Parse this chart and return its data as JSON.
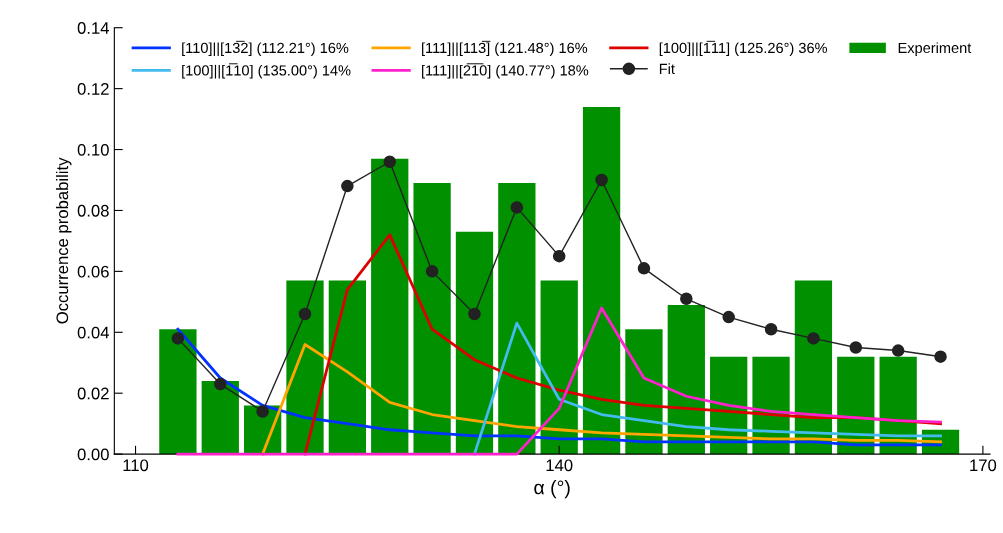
{
  "chart_data": {
    "type": "bar",
    "xlabel": "α (°)",
    "ylabel": "Occurrence probability",
    "xlim": [
      108.5,
      170.5
    ],
    "xticks": [
      110,
      140,
      170
    ],
    "ylim": [
      0,
      0.14
    ],
    "yticks": [
      {
        "value": 0,
        "label": "0.00"
      },
      {
        "value": 0.02,
        "label": "0.02"
      },
      {
        "value": 0.04,
        "label": "0.04"
      },
      {
        "value": 0.06,
        "label": "0.06"
      },
      {
        "value": 0.08,
        "label": "0.08"
      },
      {
        "value": 0.1,
        "label": "0.10"
      },
      {
        "value": 0.12,
        "label": "0.12"
      },
      {
        "value": 0.14,
        "label": "0.14"
      }
    ],
    "grid": false,
    "legend": "top",
    "series": [
      {
        "name": "[110]||[13̅2] (112.21°) 16%",
        "type": "line",
        "color": "#0033ff",
        "x": [
          113,
          116,
          119,
          122,
          125,
          128,
          131,
          134,
          137,
          140,
          143,
          146,
          149,
          152,
          155,
          158,
          161,
          164,
          167
        ],
        "values": [
          0.041,
          0.025,
          0.016,
          0.012,
          0.01,
          0.008,
          0.007,
          0.006,
          0.006,
          0.005,
          0.005,
          0.004,
          0.004,
          0.004,
          0.004,
          0.004,
          0.003,
          0.003,
          0.003
        ]
      },
      {
        "name": "[111]||[113̅] (121.48°) 16%",
        "type": "line",
        "color": "#ffa500",
        "x": [
          119,
          122,
          125,
          128,
          131,
          134,
          137,
          140,
          143,
          146,
          149,
          152,
          155,
          158,
          161,
          164,
          167
        ],
        "values": [
          0,
          0.036,
          0.027,
          0.017,
          0.013,
          0.011,
          0.009,
          0.008,
          0.007,
          0.0065,
          0.006,
          0.0055,
          0.005,
          0.005,
          0.0045,
          0.0045,
          0.004
        ]
      },
      {
        "name": "[100]||[1̅11] (125.26°) 36%",
        "type": "line",
        "color": "#dd0000",
        "x": [
          122,
          125,
          128,
          131,
          134,
          137,
          140,
          143,
          146,
          149,
          152,
          155,
          158,
          161,
          164,
          167
        ],
        "values": [
          0,
          0.054,
          0.072,
          0.041,
          0.031,
          0.025,
          0.021,
          0.018,
          0.016,
          0.015,
          0.014,
          0.013,
          0.012,
          0.012,
          0.011,
          0.01
        ]
      },
      {
        "name": "[100]||[1̅10] (135.00°) 14%",
        "type": "line",
        "color": "#44bbee",
        "x": [
          134,
          137,
          140,
          143,
          146,
          149,
          152,
          155,
          158,
          161,
          164,
          167
        ],
        "values": [
          0,
          0.043,
          0.018,
          0.013,
          0.011,
          0.009,
          0.008,
          0.0075,
          0.007,
          0.0065,
          0.006,
          0.006
        ]
      },
      {
        "name": "[111]||[2̅1̅0] (140.77°) 18%",
        "type": "line",
        "color": "#ff22cc",
        "x": [
          113,
          116,
          119,
          122,
          125,
          128,
          131,
          134,
          137,
          140,
          143,
          146,
          149,
          152,
          155,
          158,
          161,
          164,
          167
        ],
        "values": [
          0,
          0,
          0,
          0,
          0,
          0,
          0,
          0,
          0,
          0.015,
          0.048,
          0.025,
          0.019,
          0.016,
          0.014,
          0.013,
          0.012,
          0.011,
          0.0105
        ]
      },
      {
        "name": "Fit",
        "type": "line",
        "marker": "circle",
        "color": "#222222",
        "x": [
          113,
          116,
          119,
          122,
          125,
          128,
          131,
          134,
          137,
          140,
          143,
          146,
          149,
          152,
          155,
          158,
          161,
          164,
          167
        ],
        "values": [
          0.038,
          0.023,
          0.014,
          0.046,
          0.088,
          0.096,
          0.06,
          0.046,
          0.081,
          0.065,
          0.09,
          0.061,
          0.051,
          0.045,
          0.041,
          0.038,
          0.035,
          0.034,
          0.032
        ]
      },
      {
        "name": "Experiment",
        "color": "#009000",
        "x": [
          113,
          116,
          119,
          122,
          125,
          128,
          131,
          134,
          137,
          140,
          143,
          146,
          149,
          152,
          155,
          158,
          161,
          164,
          167
        ],
        "values": [
          0.041,
          0.024,
          0.016,
          0.057,
          0.057,
          0.097,
          0.089,
          0.073,
          0.089,
          0.057,
          0.114,
          0.041,
          0.049,
          0.032,
          0.032,
          0.057,
          0.032,
          0.032,
          0.008
        ]
      }
    ]
  }
}
